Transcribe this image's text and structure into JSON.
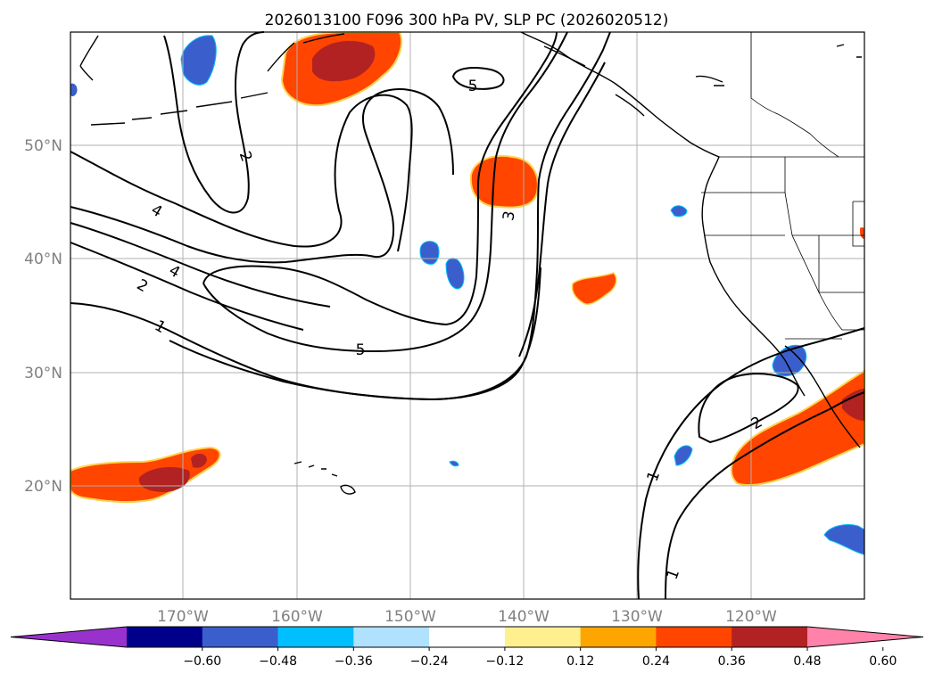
{
  "title": "2026013100 F096 300 hPa PV, SLP PC (2026020512)",
  "map": {
    "lon_labels": [
      "170°W",
      "160°W",
      "150°W",
      "140°W",
      "130°W",
      "120°W"
    ],
    "lat_labels": [
      "50°N",
      "40°N",
      "30°N",
      "20°N"
    ],
    "contour_labels": [
      "5",
      "2",
      "4",
      "4",
      "2",
      "1",
      "5",
      "3",
      "1",
      "2",
      "1"
    ]
  },
  "colorbar": {
    "ticks": [
      "−0.60",
      "−0.48",
      "−0.36",
      "−0.24",
      "−0.12",
      "0.12",
      "0.24",
      "0.36",
      "0.48",
      "0.60"
    ],
    "colors": [
      "#9932cc",
      "#00008b",
      "#3a5fcd",
      "#00bfff",
      "#b0e2ff",
      "#ffffff",
      "#fff08f",
      "#ffa500",
      "#ff4500",
      "#b22222",
      "#ff82ab"
    ]
  }
}
